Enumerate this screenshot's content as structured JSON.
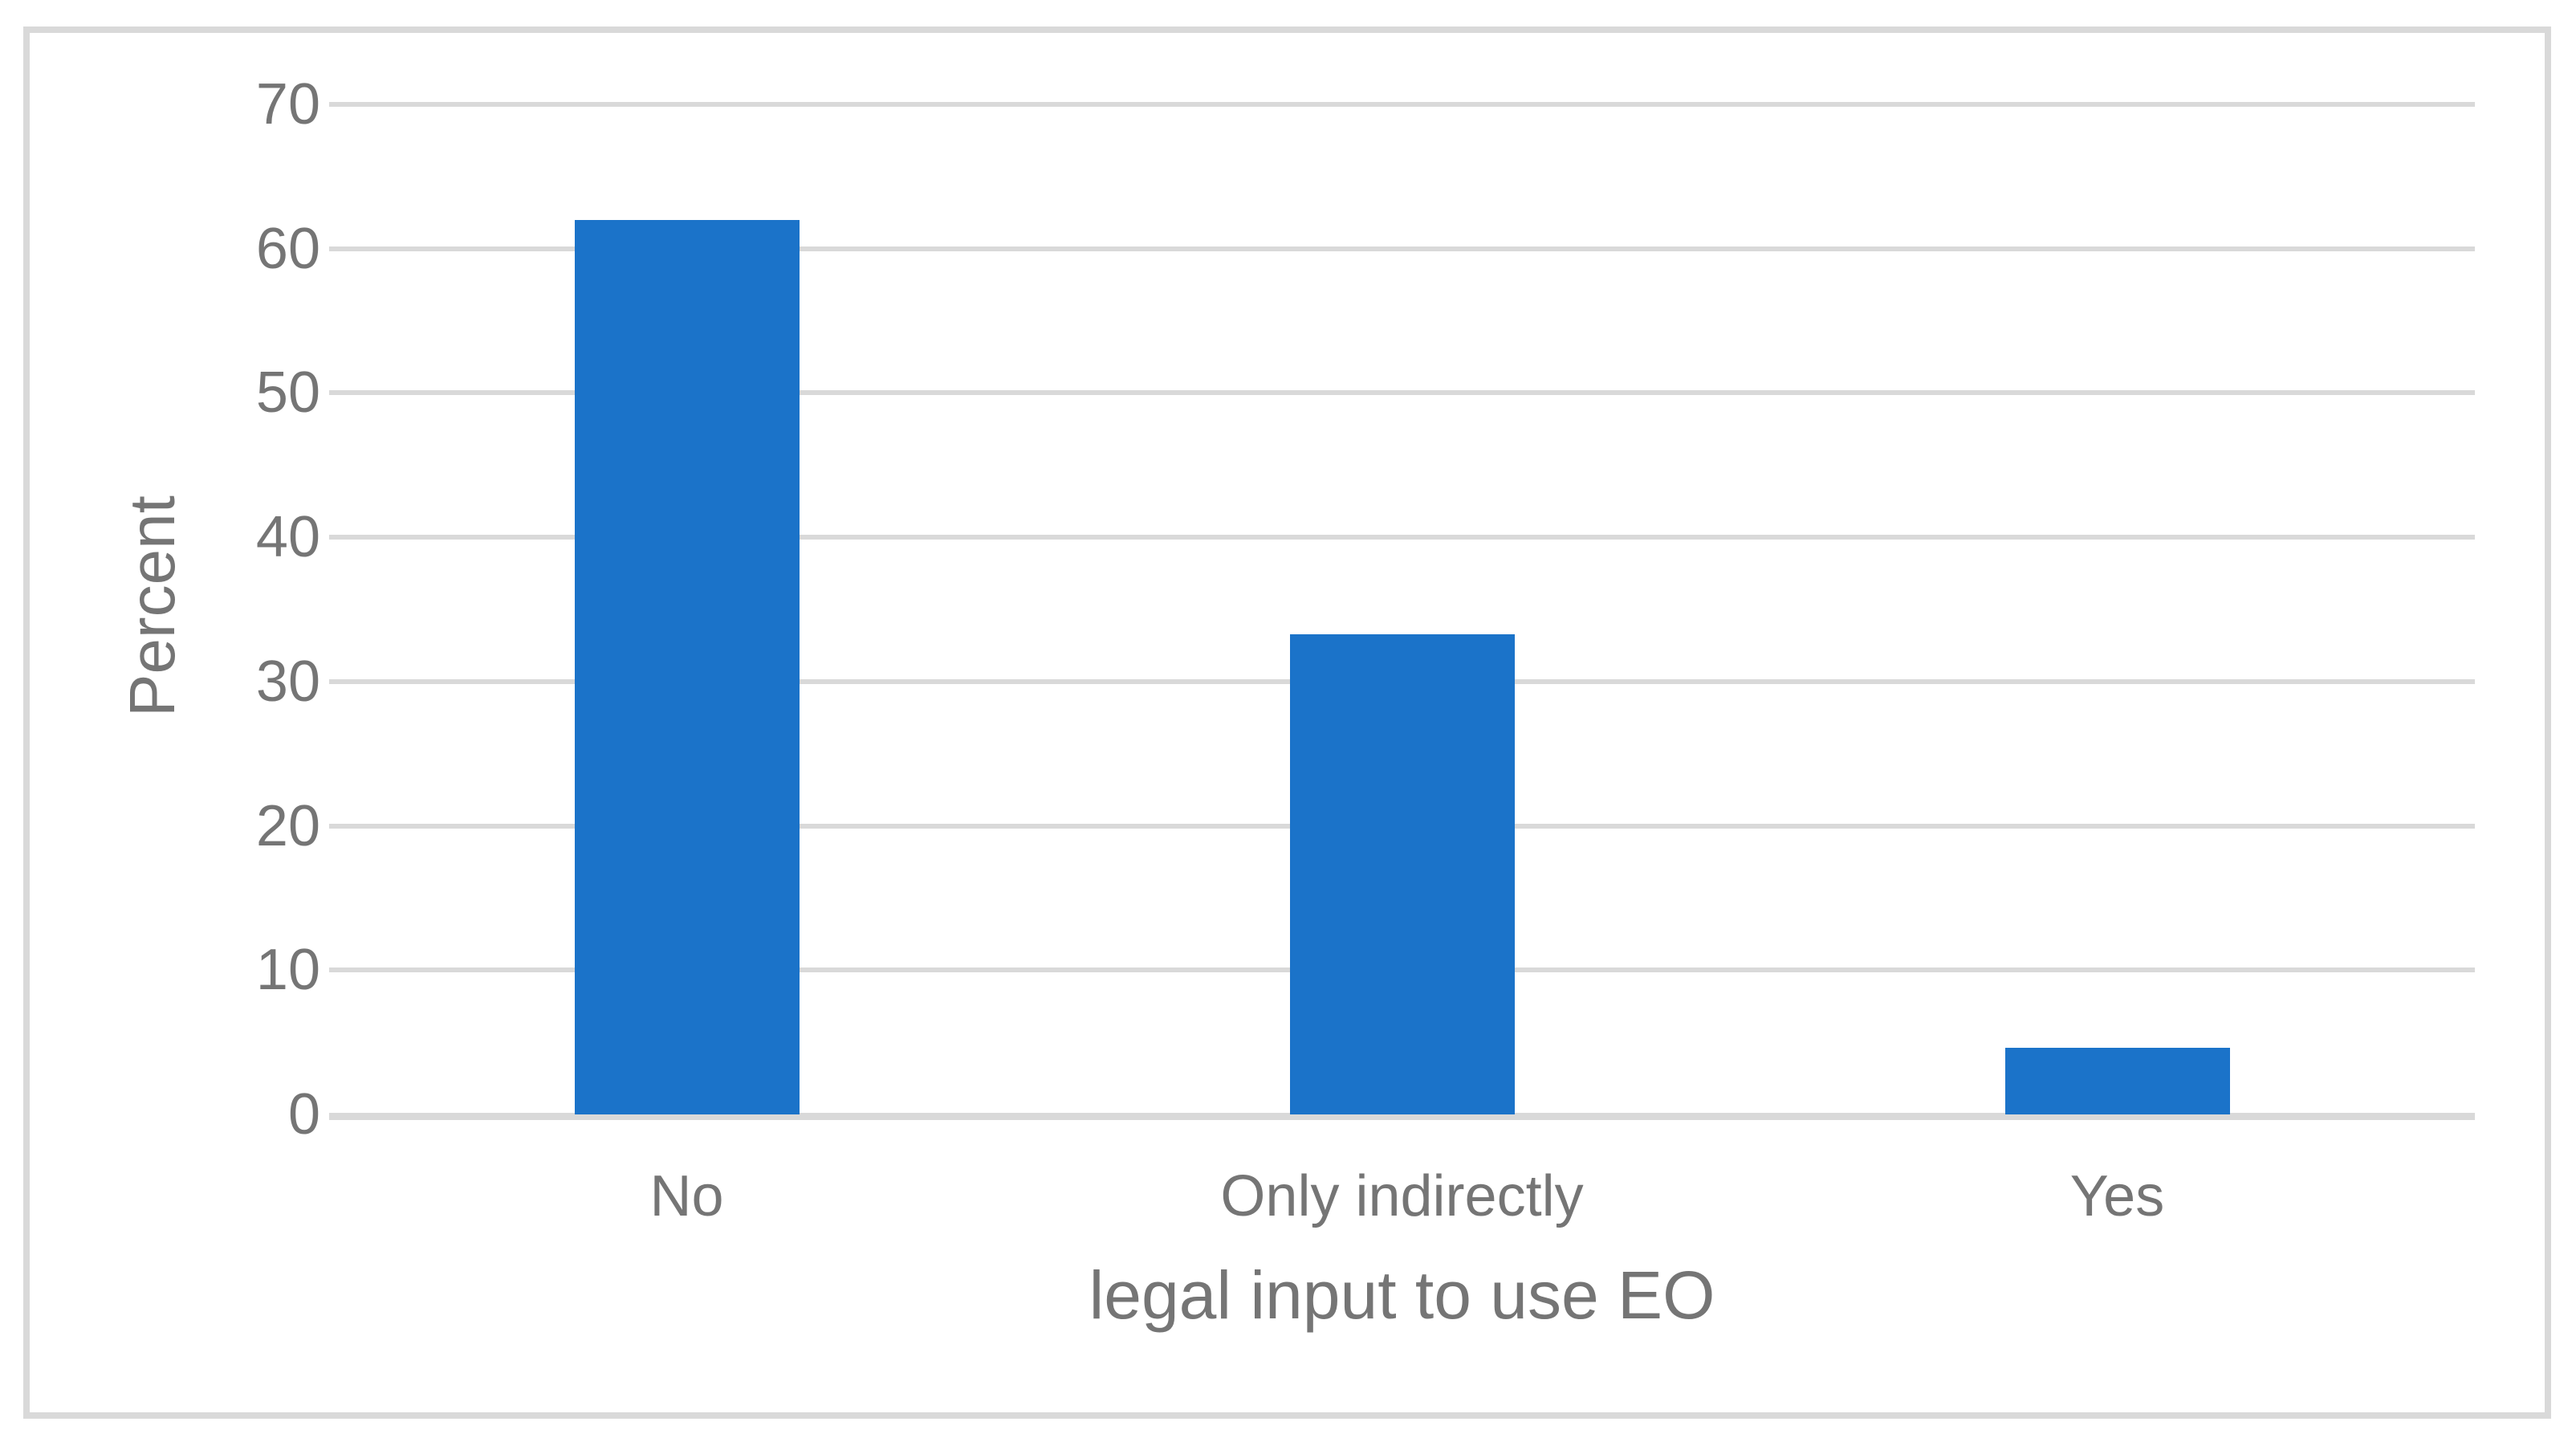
{
  "chart_data": {
    "type": "bar",
    "categories": [
      "No",
      "Only indirectly",
      "Yes"
    ],
    "values": [
      62,
      33.3,
      4.6
    ],
    "title": "",
    "xlabel": "legal input to use EO",
    "ylabel": "Percent",
    "ylim": [
      0,
      70
    ],
    "yticks": [
      0,
      10,
      20,
      30,
      40,
      50,
      60,
      70
    ],
    "grid": true,
    "legend": "none",
    "bar_color": "#1B73C9",
    "gridline_color": "#D9D9D9",
    "frame_border_color": "#D9D9D9",
    "axis_text_color": "#757575"
  }
}
